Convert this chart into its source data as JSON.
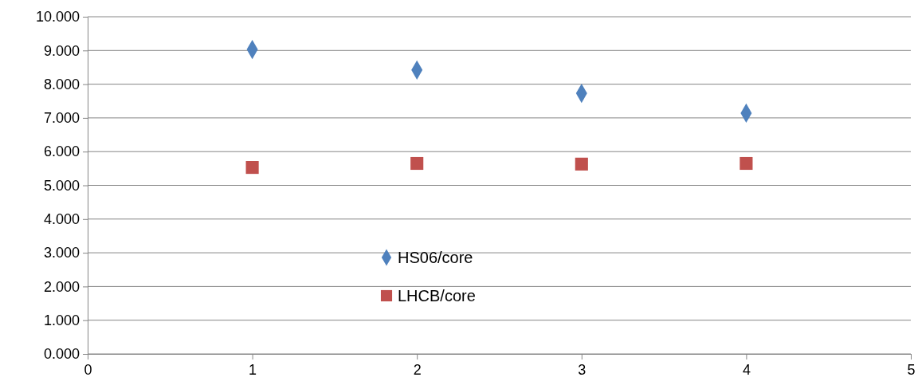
{
  "chart_data": {
    "type": "scatter",
    "x": [
      1,
      2,
      3,
      4
    ],
    "series": [
      {
        "name": "HS06/core",
        "color": "#4f81bd",
        "marker": "diamond",
        "values": [
          9.03,
          8.42,
          7.73,
          7.14
        ]
      },
      {
        "name": "LHCB/core",
        "color": "#c0504d",
        "marker": "square",
        "values": [
          5.53,
          5.65,
          5.63,
          5.65
        ]
      }
    ],
    "xlim": [
      0,
      5
    ],
    "xticks": [
      0,
      1,
      2,
      3,
      4,
      5
    ],
    "ylim": [
      0,
      10
    ],
    "yticks": [
      {
        "value": 0,
        "label": "0.000"
      },
      {
        "value": 1,
        "label": "1.000"
      },
      {
        "value": 2,
        "label": "2.000"
      },
      {
        "value": 3,
        "label": "3.000"
      },
      {
        "value": 4,
        "label": "4.000"
      },
      {
        "value": 5,
        "label": "5.000"
      },
      {
        "value": 6,
        "label": "6.000"
      },
      {
        "value": 7,
        "label": "7.000"
      },
      {
        "value": 8,
        "label": "8.000"
      },
      {
        "value": 9,
        "label": "9.000"
      },
      {
        "value": 10,
        "label": "10.000"
      }
    ],
    "grid": "y",
    "legend": "bottom"
  }
}
